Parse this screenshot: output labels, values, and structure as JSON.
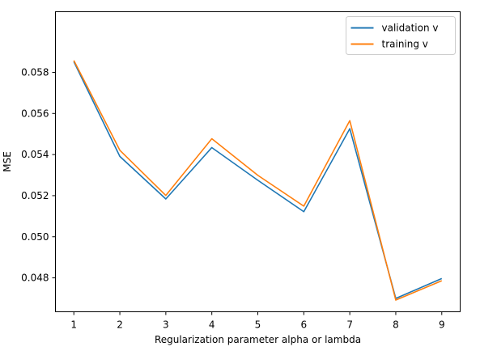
{
  "chart_data": {
    "type": "line",
    "title": "",
    "xlabel": "Regularization parameter alpha or lambda",
    "ylabel": "MSE",
    "x": [
      1,
      2,
      3,
      4,
      5,
      6,
      7,
      8,
      9
    ],
    "x_ticks": [
      "1",
      "2",
      "3",
      "4",
      "5",
      "6",
      "7",
      "8",
      "9"
    ],
    "y_ticks": [
      "0.048",
      "0.050",
      "0.052",
      "0.054",
      "0.056",
      "0.058"
    ],
    "xlim": [
      0.6,
      9.4
    ],
    "ylim": [
      0.04635,
      0.06095
    ],
    "grid": false,
    "legend_position": "upper right",
    "series": [
      {
        "name": "validation v",
        "color": "#1f77b4",
        "values": [
          0.05852,
          0.05391,
          0.05184,
          0.05434,
          0.05275,
          0.05122,
          0.05526,
          0.047,
          0.04797
        ]
      },
      {
        "name": "training v",
        "color": "#ff7f0e",
        "values": [
          0.05858,
          0.05421,
          0.05201,
          0.05477,
          0.05299,
          0.05149,
          0.05565,
          0.04692,
          0.04786
        ]
      }
    ]
  }
}
